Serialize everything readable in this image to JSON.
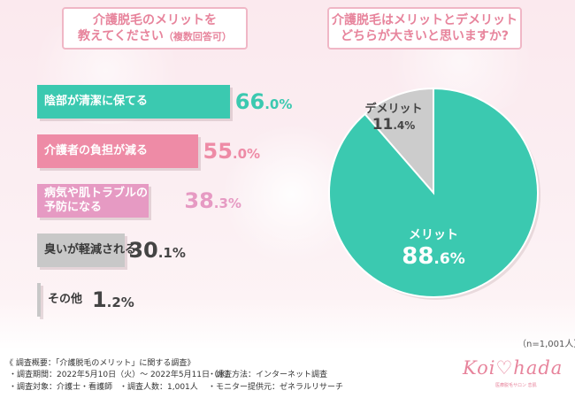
{
  "questions": {
    "left": {
      "line1": "介護脱毛のメリットを",
      "line2": "教えてください",
      "line2_note": "（複数回答可）"
    },
    "right": {
      "line1": "介護脱毛はメリットとデメリット",
      "line2": "どちらが大きいと思いますか?"
    }
  },
  "chart_data": [
    {
      "type": "bar",
      "orientation": "horizontal",
      "categories": [
        "陰部が清潔に保てる",
        "介護者の負担が減る",
        "病気や肌トラブルの予防になる",
        "臭いが軽減される",
        "その他"
      ],
      "label_lines": [
        [
          "陰部が清潔に保てる"
        ],
        [
          "介護者の負担が減る"
        ],
        [
          "病気や肌トラブルの",
          "予防になる"
        ],
        [
          "臭いが軽減される"
        ],
        [
          "その他"
        ]
      ],
      "values": [
        66.0,
        55.0,
        38.3,
        30.1,
        1.2
      ],
      "value_labels": [
        {
          "int": "66",
          "dec": ".0%"
        },
        {
          "int": "55",
          "dec": ".0%"
        },
        {
          "int": "38",
          "dec": ".3%"
        },
        {
          "int": "30",
          "dec": ".1%"
        },
        {
          "int": "1",
          "dec": ".2%"
        }
      ],
      "unit": "%",
      "colors": [
        "#3bc9b0",
        "#ee8ba6",
        "#e69ac3",
        "#c8c8c8",
        "#c8c8c8"
      ],
      "pct_colors": [
        "#3bc9b0",
        "#ee8ba6",
        "#e69ac3",
        "#444444",
        "#444444"
      ],
      "label_dark": [
        false,
        false,
        false,
        true,
        true
      ],
      "grid": false,
      "legend": "none"
    },
    {
      "type": "pie",
      "categories": [
        "メリット",
        "デメリット"
      ],
      "values": [
        88.6,
        11.4
      ],
      "value_labels": [
        {
          "int": "88",
          "dec": ".6%"
        },
        {
          "int": "11",
          "dec": ".4%"
        }
      ],
      "unit": "%",
      "colors": [
        "#3bc9b0",
        "#cccccc"
      ],
      "legend": "none"
    }
  ],
  "sample_note": "（n=1,001人）",
  "footer": {
    "title": "《 調査概要：「介護脱毛のメリット」に関する調査》",
    "period": "・調査期間：2022年5月10日（火）～ 2022年5月11日（水）",
    "method": "・調査方法：インターネット調査",
    "target": "・調査対象：介護士・看護師",
    "count": "・調査人数：1,001人",
    "provider": "・モニター提供元：ゼネラルリサーチ"
  },
  "logo": {
    "text": "Koi♡hada",
    "sub": "医療脱毛サロン 恋肌"
  }
}
